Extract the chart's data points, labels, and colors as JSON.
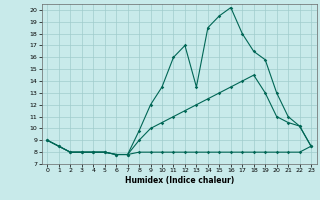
{
  "xlabel": "Humidex (Indice chaleur)",
  "bg_color": "#c8eaea",
  "grid_color": "#a0cccc",
  "line_color": "#006655",
  "xlim": [
    -0.5,
    23.5
  ],
  "ylim": [
    7,
    20.5
  ],
  "xticks": [
    0,
    1,
    2,
    3,
    4,
    5,
    6,
    7,
    8,
    9,
    10,
    11,
    12,
    13,
    14,
    15,
    16,
    17,
    18,
    19,
    20,
    21,
    22,
    23
  ],
  "yticks": [
    7,
    8,
    9,
    10,
    11,
    12,
    13,
    14,
    15,
    16,
    17,
    18,
    19,
    20
  ],
  "line1_x": [
    0,
    1,
    2,
    3,
    4,
    5,
    6,
    7,
    8,
    9,
    10,
    11,
    12,
    13,
    14,
    15,
    16,
    17,
    18,
    19,
    20,
    21,
    22,
    23
  ],
  "line1_y": [
    9.0,
    8.5,
    8.0,
    8.0,
    8.0,
    8.0,
    7.8,
    7.8,
    8.0,
    8.0,
    8.0,
    8.0,
    8.0,
    8.0,
    8.0,
    8.0,
    8.0,
    8.0,
    8.0,
    8.0,
    8.0,
    8.0,
    8.0,
    8.5
  ],
  "line2_x": [
    0,
    1,
    2,
    3,
    4,
    5,
    6,
    7,
    8,
    9,
    10,
    11,
    12,
    13,
    14,
    15,
    16,
    17,
    18,
    19,
    20,
    21,
    22,
    23
  ],
  "line2_y": [
    9.0,
    8.5,
    8.0,
    8.0,
    8.0,
    8.0,
    7.8,
    7.8,
    9.0,
    10.0,
    10.5,
    11.0,
    11.5,
    12.0,
    12.5,
    13.0,
    13.5,
    14.0,
    14.5,
    13.0,
    11.0,
    10.5,
    10.2,
    8.5
  ],
  "line3_x": [
    0,
    1,
    2,
    3,
    4,
    5,
    6,
    7,
    8,
    9,
    10,
    11,
    12,
    13,
    14,
    15,
    16,
    17,
    18,
    19,
    20,
    21,
    22,
    23
  ],
  "line3_y": [
    9.0,
    8.5,
    8.0,
    8.0,
    8.0,
    8.0,
    7.8,
    7.8,
    9.8,
    12.0,
    13.5,
    16.0,
    17.0,
    13.5,
    18.5,
    19.5,
    20.2,
    18.0,
    16.5,
    15.8,
    13.0,
    11.0,
    10.2,
    8.5
  ]
}
